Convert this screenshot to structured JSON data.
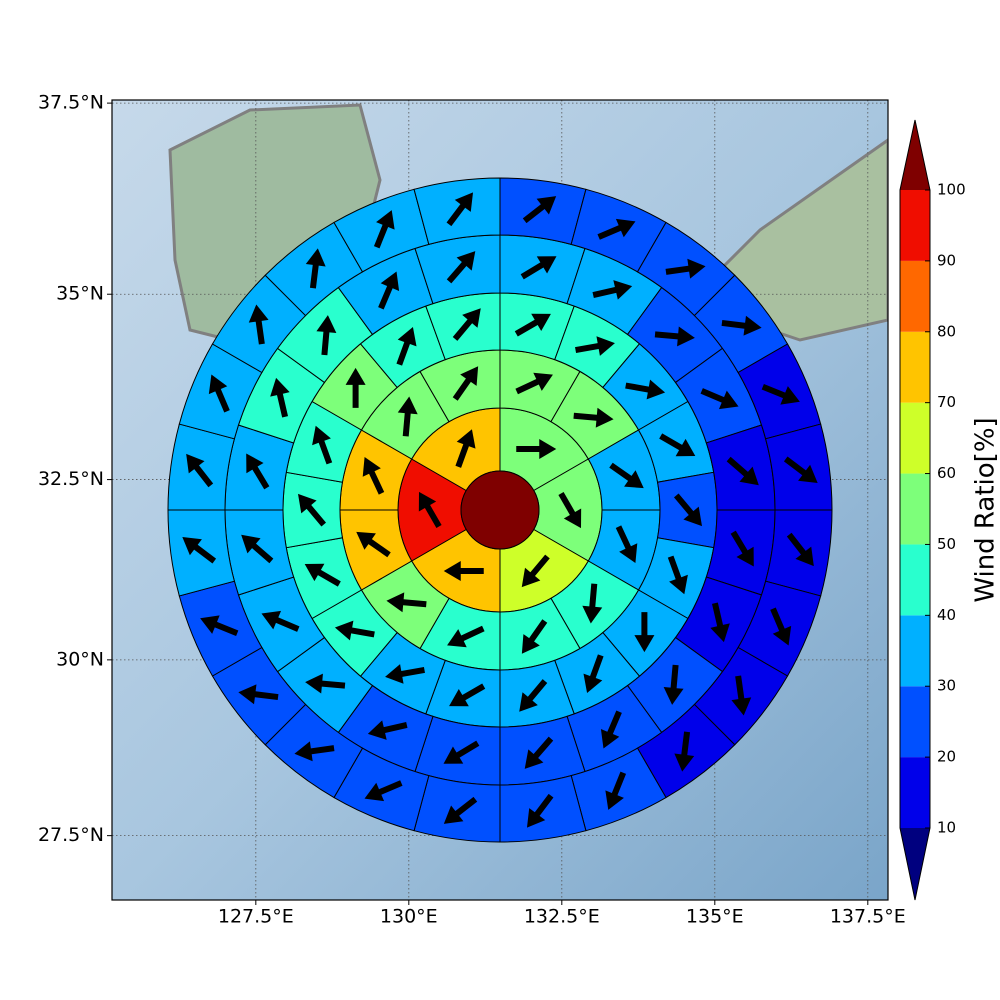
{
  "chart_data": {
    "type": "polar-sectors",
    "xlim": [
      125.15,
      137.83
    ],
    "ylim": [
      26.57,
      37.54
    ],
    "xticks": [
      {
        "value": 127.5,
        "label": "127.5°E"
      },
      {
        "value": 130,
        "label": "130°E"
      },
      {
        "value": 132.5,
        "label": "132.5°E"
      },
      {
        "value": 135,
        "label": "135°E"
      },
      {
        "value": 137.5,
        "label": "137.5°E"
      }
    ],
    "yticks": [
      {
        "value": 27.5,
        "label": "27.5°N"
      },
      {
        "value": 30,
        "label": "30°N"
      },
      {
        "value": 32.5,
        "label": "32.5°N"
      },
      {
        "value": 35,
        "label": "35°N"
      },
      {
        "value": 37.5,
        "label": "37.5°N"
      }
    ],
    "grid": true,
    "colorbar": {
      "label": "Wind Ratio[%]",
      "levels": [
        10,
        20,
        30,
        40,
        50,
        60,
        70,
        80,
        90,
        100
      ],
      "colors": [
        "#00007f",
        "#0000ea",
        "#0050ff",
        "#00b0ff",
        "#29ffce",
        "#7dff7a",
        "#ceff29",
        "#ffc400",
        "#ff6800",
        "#f00d00",
        "#7f0000"
      ]
    },
    "center_value": 105,
    "rings": [
      {
        "values": [
          55,
          55,
          65,
          75,
          95,
          75
        ],
        "directions": [
          90,
          150,
          220,
          270,
          330,
          20
        ]
      },
      {
        "values": [
          55,
          55,
          35,
          35,
          45,
          45,
          45,
          55,
          75,
          75,
          55,
          55
        ],
        "directions": [
          65,
          95,
          125,
          155,
          185,
          215,
          245,
          275,
          305,
          335,
          5,
          35
        ]
      },
      {
        "values": [
          45,
          45,
          35,
          35,
          25,
          35,
          35,
          35,
          35,
          35,
          35,
          45,
          45,
          45,
          45,
          55,
          45,
          45
        ],
        "directions": [
          60,
          80,
          100,
          120,
          140,
          160,
          180,
          200,
          220,
          240,
          260,
          280,
          300,
          320,
          340,
          0,
          20,
          40
        ]
      },
      {
        "values": [
          35,
          35,
          25,
          25,
          15,
          15,
          15,
          25,
          25,
          25,
          25,
          25,
          35,
          35,
          35,
          35,
          45,
          45,
          35,
          35
        ],
        "directions": [
          59,
          77,
          95,
          113,
          131,
          149,
          167,
          185,
          203,
          221,
          239,
          257,
          275,
          293,
          311,
          329,
          347,
          5,
          23,
          41
        ]
      },
      {
        "values": [
          25,
          25,
          25,
          25,
          15,
          15,
          15,
          15,
          15,
          15,
          25,
          25,
          25,
          25,
          25,
          25,
          25,
          35,
          35,
          35,
          35,
          35,
          35,
          35
        ],
        "directions": [
          52,
          67,
          82,
          97,
          112,
          127,
          142,
          157,
          172,
          187,
          202,
          217,
          232,
          247,
          262,
          277,
          292,
          307,
          322,
          337,
          352,
          7,
          22,
          37
        ]
      }
    ]
  }
}
